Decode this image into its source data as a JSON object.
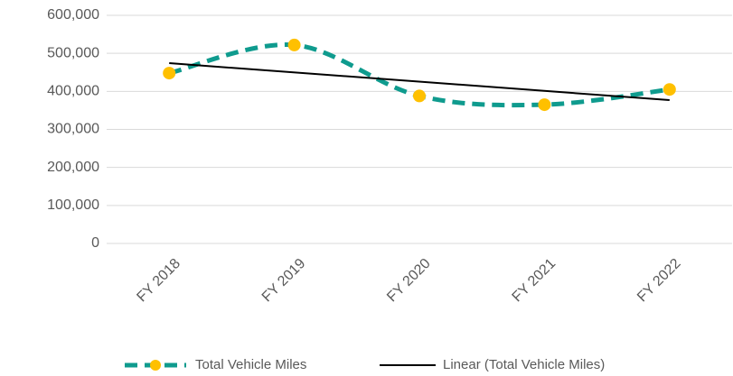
{
  "chart_data": {
    "type": "line",
    "categories": [
      "FY 2018",
      "FY 2019",
      "FY 2020",
      "FY 2021",
      "FY 2022"
    ],
    "series": [
      {
        "name": "Total Vehicle Miles",
        "color": "#0f9b8e",
        "marker_color": "#ffc000",
        "values": [
          448000,
          522000,
          388000,
          365000,
          405000
        ]
      }
    ],
    "trendline": {
      "name": "Linear (Total Vehicle Miles)",
      "color": "#000000"
    },
    "ylim": [
      0,
      600000
    ],
    "yticks": [
      0,
      {
        "value": 100000,
        "label": "100,000"
      },
      {
        "value": 200000,
        "label": "200,000"
      },
      {
        "value": 300000,
        "label": "300,000"
      },
      {
        "value": 400000,
        "label": "400,000"
      },
      {
        "value": 500000,
        "label": "500,000"
      },
      {
        "value": 600000,
        "label": "600,000"
      }
    ],
    "grid": true
  }
}
